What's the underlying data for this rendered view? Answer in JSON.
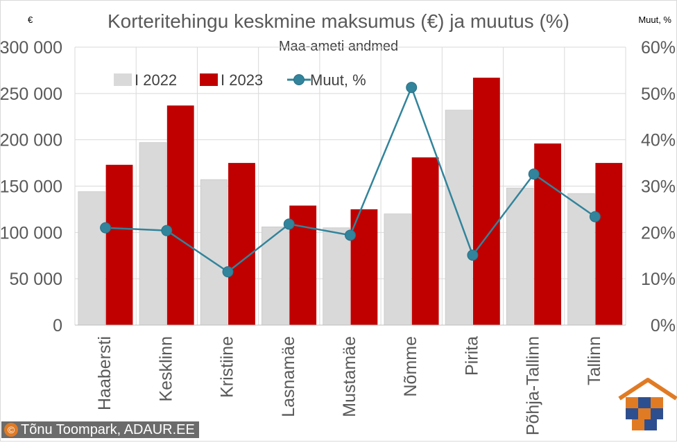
{
  "colors": {
    "series_2022": "#d9d9d9",
    "series_2023": "#c00000",
    "line": "#31849b",
    "axis_text": "#595959",
    "grid": "#d9d9d9"
  },
  "credit": "Tõnu Toompark, ADAUR.EE",
  "logo_icon": "puzzle-house-icon",
  "chart_data": {
    "type": "bar",
    "title": "Korteritehingu keskmine maksumus (€) ja muutus (%)",
    "subtitle": "Maa-ameti andmed",
    "ylabel_left": "€",
    "ylabel_right": "Muut, %",
    "ylim_left": [
      0,
      300000
    ],
    "ylim_right": [
      0,
      60
    ],
    "yticks_left": [
      "0",
      "50 000",
      "100 000",
      "150 000",
      "200 000",
      "250 000",
      "300 000"
    ],
    "yticks_right": [
      "0%",
      "10%",
      "20%",
      "30%",
      "40%",
      "50%",
      "60%"
    ],
    "grid": true,
    "legend_position": "top",
    "categories": [
      "Haabersti",
      "Kesklinn",
      "Kristiine",
      "Lasnamäe",
      "Mustamäe",
      "Nõmme",
      "Pirita",
      "Põhja-Tallinn",
      "Tallinn"
    ],
    "series": [
      {
        "name": "I 2022",
        "type": "bar",
        "axis": "left",
        "values": [
          144000,
          197000,
          157000,
          106000,
          105000,
          120000,
          232000,
          148000,
          142000
        ]
      },
      {
        "name": "I 2023",
        "type": "bar",
        "axis": "left",
        "values": [
          173000,
          237000,
          175000,
          129000,
          125000,
          181000,
          267000,
          196000,
          175000
        ]
      },
      {
        "name": "Muut, %",
        "type": "line",
        "axis": "right",
        "values": [
          21,
          20.4,
          11.5,
          21.8,
          19.4,
          51.3,
          15.1,
          32.6,
          23.4
        ]
      }
    ]
  }
}
